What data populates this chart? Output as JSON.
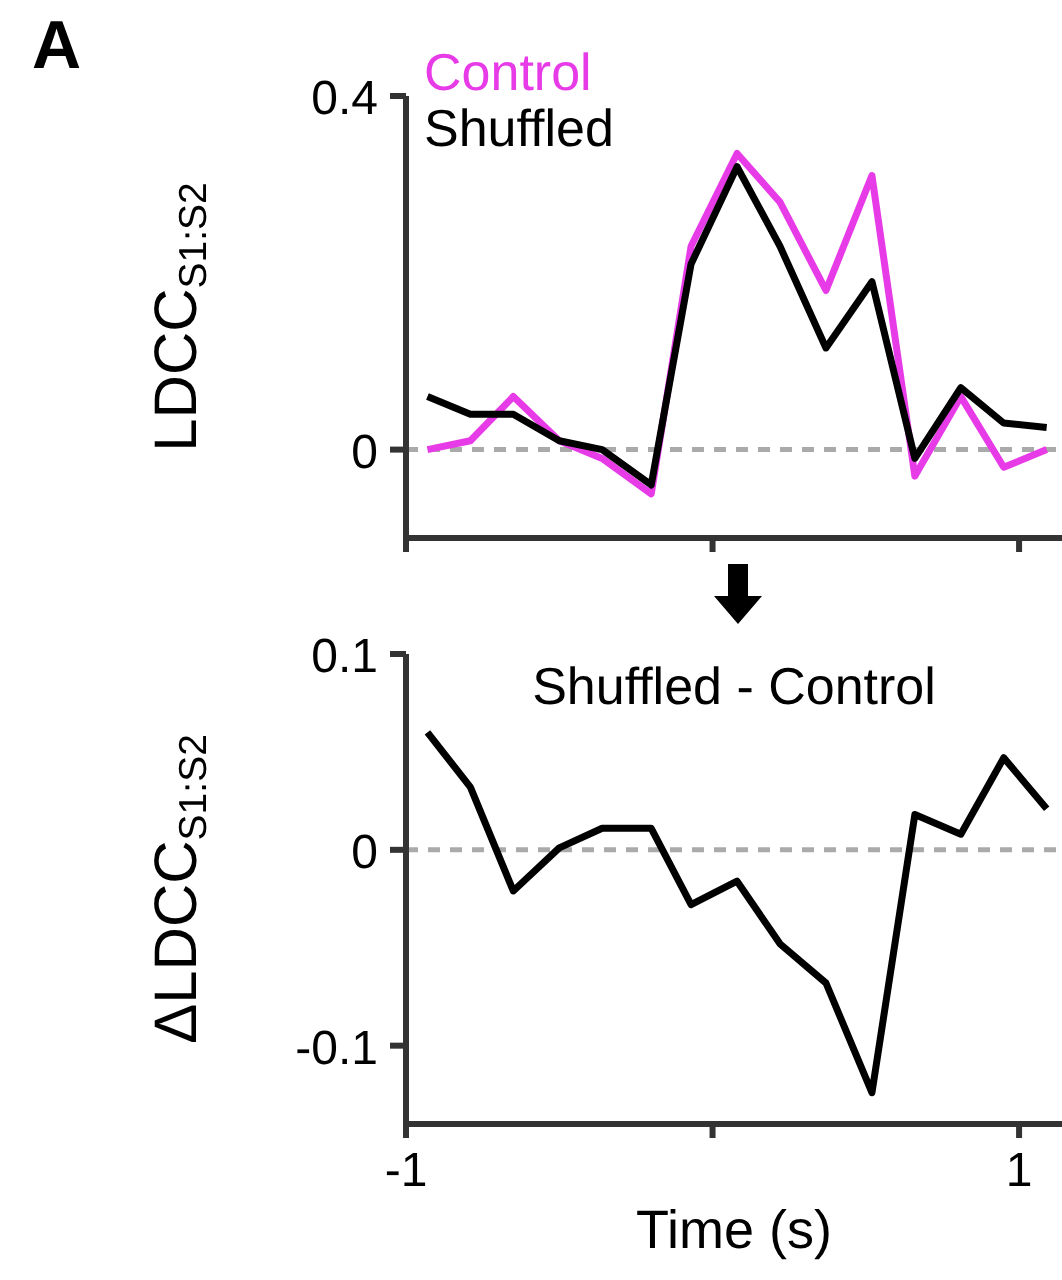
{
  "chart_data": [
    {
      "type": "line",
      "ylabel": "LDCC$_{S1:S2}$",
      "annotations": [
        "A"
      ],
      "legend": "top left",
      "tick_labels": "y",
      "line_style": "solid",
      "marker": "none",
      "x": [
        -0.93,
        -0.79,
        -0.65,
        -0.5,
        -0.36,
        -0.2,
        -0.07,
        0.08,
        0.22,
        0.37,
        0.52,
        0.66,
        0.81,
        0.95,
        1.09
      ],
      "series": [
        {
          "name": "Control",
          "color": "#e83be8",
          "values": [
            0.0,
            0.01,
            0.06,
            0.01,
            -0.01,
            -0.05,
            0.23,
            0.335,
            0.28,
            0.18,
            0.31,
            -0.03,
            0.06,
            -0.02,
            0.0
          ]
        },
        {
          "name": "Shuffled",
          "color": "#000000",
          "values": [
            0.06,
            0.04,
            0.04,
            0.01,
            0.0,
            -0.04,
            0.21,
            0.32,
            0.23,
            0.115,
            0.19,
            -0.01,
            0.07,
            0.03,
            0.025
          ]
        }
      ],
      "xlim": [
        -1,
        1.14
      ],
      "xticks": [
        {
          "value": -1,
          "label": null
        },
        {
          "value": 0,
          "label": null
        },
        {
          "value": 1,
          "label": null
        }
      ],
      "ylim": [
        -0.1,
        0.4
      ],
      "yticks": [
        0,
        0.4
      ],
      "ref_lines": [
        {
          "axis": "y",
          "value": 0,
          "color": "#aaaaaa",
          "line_style": "dashed"
        }
      ],
      "grid": false
    },
    {
      "type": "line",
      "ylabel": "ΔLDCC$_{S1:S2}$",
      "xlabel": "Time (s)",
      "legend": "top",
      "line_style": "solid",
      "marker": "none",
      "x": [
        -0.93,
        -0.79,
        -0.65,
        -0.5,
        -0.36,
        -0.2,
        -0.07,
        0.08,
        0.22,
        0.37,
        0.52,
        0.66,
        0.81,
        0.95,
        1.09
      ],
      "series": [
        {
          "name": "Shuffled - Control",
          "color": "#000000",
          "values": [
            0.06,
            0.032,
            -0.021,
            0.001,
            0.011,
            0.011,
            -0.028,
            -0.016,
            -0.048,
            -0.068,
            -0.124,
            0.018,
            0.008,
            0.047,
            0.021
          ]
        }
      ],
      "xlim": [
        -1,
        1.14
      ],
      "xticks": [
        -1,
        {
          "value": 0,
          "label": null
        },
        1
      ],
      "ylim": [
        -0.14,
        0.1
      ],
      "yticks": [
        -0.1,
        0,
        0.1
      ],
      "ref_lines": [
        {
          "axis": "y",
          "value": 0,
          "color": "#aaaaaa",
          "line_style": "dashed"
        }
      ],
      "grid": false
    }
  ]
}
